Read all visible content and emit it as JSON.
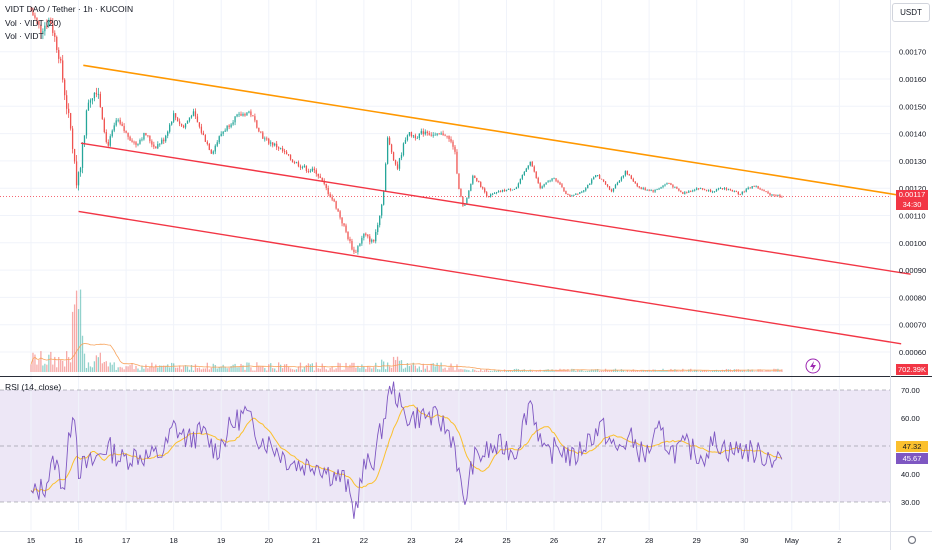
{
  "header": {
    "title": "VIDT DAO / Tether · 1h · KUCOIN",
    "vol_ma_label": "Vol · VIDT (20)",
    "vol_label": "Vol · VIDT",
    "currency_button": "USDT"
  },
  "price_tags": {
    "last_price": "0.00117",
    "countdown": "34:30",
    "volume": "702.39K",
    "rsi_ma": "47.32",
    "rsi": "45.67"
  },
  "rsi_panel": {
    "title": "RSI (14, close)"
  },
  "colors": {
    "up": "#26a69a",
    "down": "#ef5350",
    "orange_trendline": "#ff9800",
    "red_trendline": "#f23645",
    "rsi_line": "#7e57c2",
    "rsi_ma": "#fbc02d",
    "rsi_band": "#ede7f6",
    "vol_ma": "#f7a35c"
  },
  "chart_data": [
    {
      "type": "candlestick",
      "title": "VIDT DAO / Tether · 1h · KUCOIN",
      "x_ticks": [
        "15",
        "16",
        "17",
        "18",
        "19",
        "20",
        "21",
        "22",
        "23",
        "24",
        "25",
        "26",
        "27",
        "28",
        "29",
        "30",
        "May",
        "2"
      ],
      "y_ticks": [
        "0.00060",
        "0.00070",
        "0.00080",
        "0.00090",
        "0.00100",
        "0.00110",
        "0.00120",
        "0.00130",
        "0.00140",
        "0.00150",
        "0.00160",
        "0.00170"
      ],
      "ylim": [
        0.00055,
        0.00182
      ],
      "last_price": 0.00117,
      "price_path": [
        [
          15.0,
          0.00185
        ],
        [
          15.2,
          0.00178
        ],
        [
          15.4,
          0.00182
        ],
        [
          15.6,
          0.00168
        ],
        [
          15.75,
          0.0015
        ],
        [
          15.85,
          0.0014
        ],
        [
          15.95,
          0.00122
        ],
        [
          16.05,
          0.0013
        ],
        [
          16.2,
          0.00152
        ],
        [
          16.4,
          0.00157
        ],
        [
          16.6,
          0.00135
        ],
        [
          16.8,
          0.00145
        ],
        [
          17.0,
          0.0014
        ],
        [
          17.2,
          0.00136
        ],
        [
          17.4,
          0.0014
        ],
        [
          17.6,
          0.00135
        ],
        [
          17.8,
          0.00138
        ],
        [
          18.0,
          0.00147
        ],
        [
          18.2,
          0.00142
        ],
        [
          18.4,
          0.00148
        ],
        [
          18.6,
          0.0014
        ],
        [
          18.8,
          0.00133
        ],
        [
          19.0,
          0.0014
        ],
        [
          19.3,
          0.00146
        ],
        [
          19.6,
          0.00148
        ],
        [
          19.9,
          0.00138
        ],
        [
          20.2,
          0.00135
        ],
        [
          20.5,
          0.0013
        ],
        [
          20.8,
          0.00127
        ],
        [
          21.0,
          0.00126
        ],
        [
          21.2,
          0.0012
        ],
        [
          21.4,
          0.00114
        ],
        [
          21.6,
          0.00105
        ],
        [
          21.8,
          0.00096
        ],
        [
          22.0,
          0.00103
        ],
        [
          22.2,
          0.001
        ],
        [
          22.4,
          0.00116
        ],
        [
          22.5,
          0.00138
        ],
        [
          22.7,
          0.00127
        ],
        [
          22.9,
          0.0014
        ],
        [
          23.1,
          0.00139
        ],
        [
          23.3,
          0.00141
        ],
        [
          23.5,
          0.00139
        ],
        [
          23.7,
          0.0014
        ],
        [
          23.9,
          0.00135
        ],
        [
          24.0,
          0.0012
        ],
        [
          24.1,
          0.00112
        ],
        [
          24.3,
          0.00125
        ],
        [
          24.6,
          0.00117
        ],
        [
          24.9,
          0.00119
        ],
        [
          25.2,
          0.0012
        ],
        [
          25.5,
          0.0013
        ],
        [
          25.7,
          0.0012
        ],
        [
          26.0,
          0.00124
        ],
        [
          26.3,
          0.00117
        ],
        [
          26.6,
          0.00119
        ],
        [
          26.9,
          0.00125
        ],
        [
          27.2,
          0.00119
        ],
        [
          27.5,
          0.00126
        ],
        [
          27.8,
          0.0012
        ],
        [
          28.1,
          0.00119
        ],
        [
          28.4,
          0.00122
        ],
        [
          28.7,
          0.00118
        ],
        [
          29.0,
          0.0012
        ],
        [
          29.3,
          0.00119
        ],
        [
          29.6,
          0.0012
        ],
        [
          29.9,
          0.00118
        ],
        [
          30.2,
          0.00121
        ],
        [
          30.5,
          0.00118
        ],
        [
          30.8,
          0.00117
        ]
      ],
      "rsi": {
        "title": "RSI (14, close)",
        "ylim": [
          22,
          74
        ],
        "y_ticks": [
          "30.00",
          "40.00",
          "50.00",
          "60.00",
          "70.00"
        ],
        "bands": [
          30,
          50,
          70
        ],
        "last_rsi": 45.67,
        "last_rsi_ma": 47.32,
        "path": [
          [
            15.0,
            32
          ],
          [
            15.3,
            36
          ],
          [
            15.5,
            45
          ],
          [
            15.7,
            35
          ],
          [
            15.8,
            52
          ],
          [
            15.9,
            67
          ],
          [
            16.0,
            42
          ],
          [
            16.3,
            44
          ],
          [
            16.6,
            50
          ],
          [
            16.9,
            45
          ],
          [
            17.2,
            47
          ],
          [
            17.5,
            46
          ],
          [
            17.8,
            48
          ],
          [
            18.0,
            57
          ],
          [
            18.3,
            52
          ],
          [
            18.6,
            55
          ],
          [
            18.9,
            48
          ],
          [
            19.2,
            57
          ],
          [
            19.5,
            62
          ],
          [
            19.8,
            53
          ],
          [
            20.1,
            50
          ],
          [
            20.4,
            45
          ],
          [
            20.7,
            43
          ],
          [
            21.0,
            44
          ],
          [
            21.3,
            40
          ],
          [
            21.6,
            38
          ],
          [
            21.8,
            26
          ],
          [
            22.0,
            42
          ],
          [
            22.2,
            45
          ],
          [
            22.4,
            58
          ],
          [
            22.6,
            73
          ],
          [
            22.8,
            62
          ],
          [
            23.0,
            60
          ],
          [
            23.3,
            61
          ],
          [
            23.6,
            59
          ],
          [
            23.9,
            52
          ],
          [
            24.1,
            28
          ],
          [
            24.3,
            45
          ],
          [
            24.6,
            48
          ],
          [
            24.9,
            50
          ],
          [
            25.2,
            48
          ],
          [
            25.5,
            67
          ],
          [
            25.8,
            46
          ],
          [
            26.1,
            50
          ],
          [
            26.4,
            45
          ],
          [
            26.7,
            52
          ],
          [
            27.0,
            57
          ],
          [
            27.3,
            48
          ],
          [
            27.6,
            53
          ],
          [
            27.9,
            46
          ],
          [
            28.2,
            55
          ],
          [
            28.5,
            48
          ],
          [
            28.8,
            50
          ],
          [
            29.1,
            46
          ],
          [
            29.4,
            52
          ],
          [
            29.7,
            48
          ],
          [
            30.0,
            49
          ],
          [
            30.3,
            47
          ],
          [
            30.6,
            46
          ],
          [
            30.8,
            45.67
          ]
        ]
      },
      "volume_max": 660
    }
  ]
}
